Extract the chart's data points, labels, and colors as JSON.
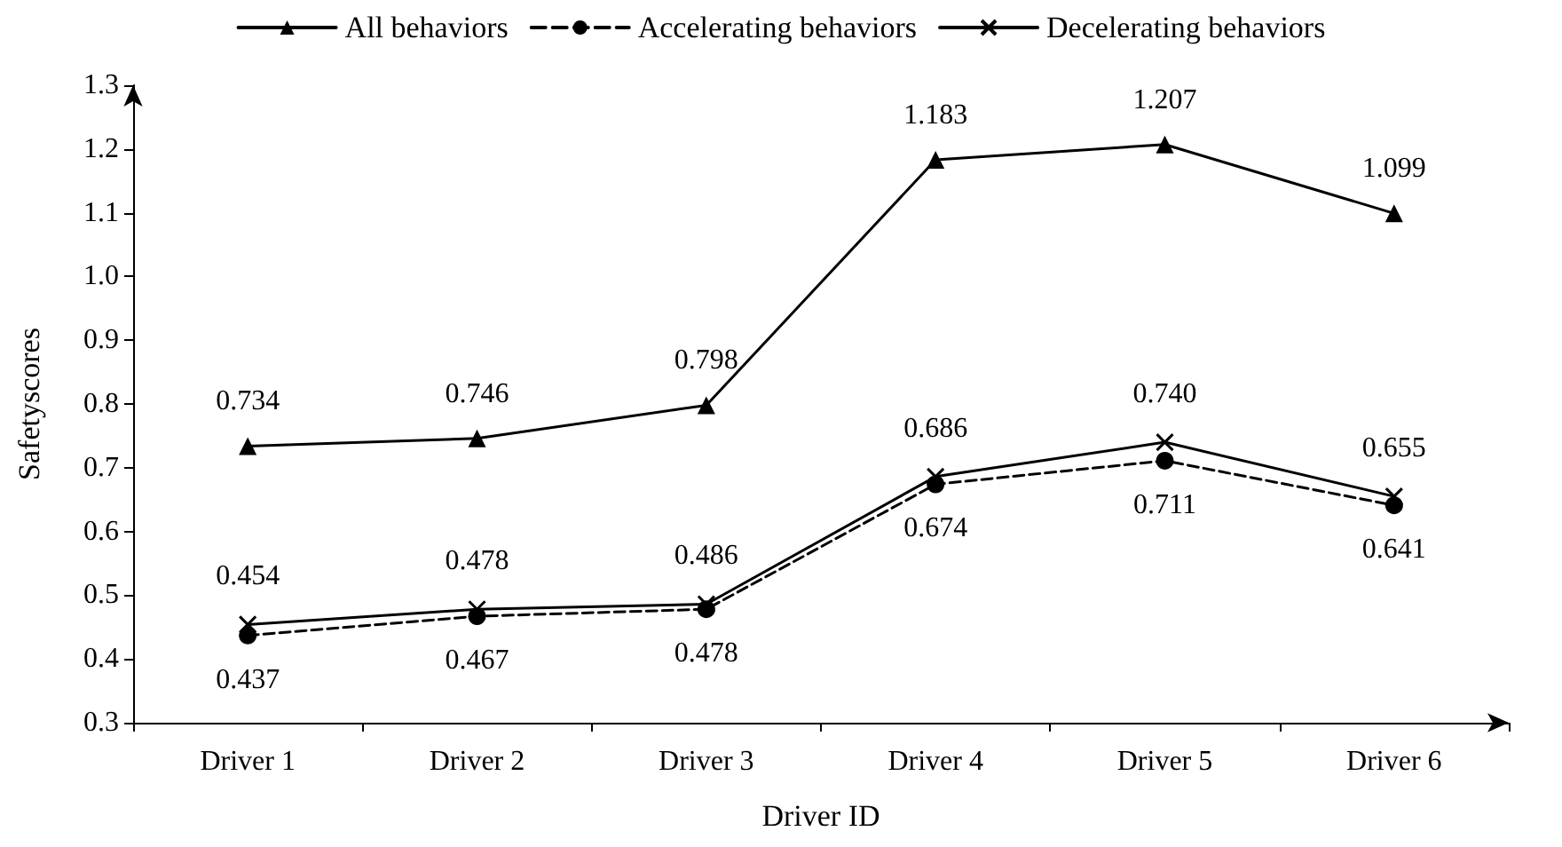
{
  "chart_data": {
    "type": "line",
    "xlabel": "Driver ID",
    "ylabel": "Safetyscores",
    "categories": [
      "Driver 1",
      "Driver 2",
      "Driver 3",
      "Driver 4",
      "Driver 5",
      "Driver 6"
    ],
    "series": [
      {
        "name": "All behaviors",
        "color": "#000000",
        "marker": "triangle",
        "line_style": "solid",
        "values": [
          0.734,
          0.746,
          0.798,
          1.183,
          1.207,
          1.099
        ],
        "value_labels": [
          "0.734",
          "0.746",
          "0.798",
          "1.183",
          "1.207",
          "1.099"
        ]
      },
      {
        "name": "Accelerating behaviors",
        "color": "#000000",
        "marker": "circle",
        "line_style": "dashed",
        "values": [
          0.437,
          0.467,
          0.478,
          0.674,
          0.711,
          0.641
        ],
        "value_labels": [
          "0.437",
          "0.467",
          "0.478",
          "0.674",
          "0.711",
          "0.641"
        ]
      },
      {
        "name": "Decelerating behaviors",
        "color": "#000000",
        "marker": "cross",
        "line_style": "solid",
        "values": [
          0.454,
          0.478,
          0.486,
          0.686,
          0.74,
          0.655
        ],
        "value_labels": [
          "0.454",
          "0.478",
          "0.486",
          "0.686",
          "0.740",
          "0.655"
        ]
      }
    ],
    "ylim": [
      0.3,
      1.3
    ],
    "yticks": [
      0.3,
      0.4,
      0.5,
      0.6,
      0.7,
      0.8,
      0.9,
      {
        "value": 1,
        "label": "1.0"
      },
      1.1,
      1.2,
      1.3
    ],
    "grid": false,
    "legend": "top"
  }
}
